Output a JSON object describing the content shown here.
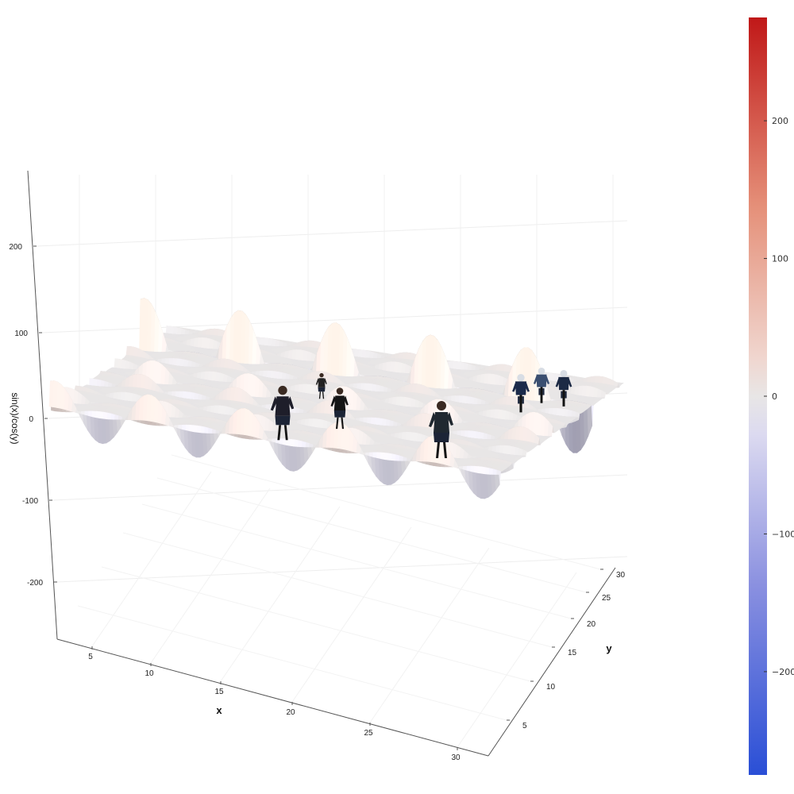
{
  "chart_data": {
    "type": "surface",
    "function": "sin(x)/cos(y)",
    "x_range": [
      1,
      31
    ],
    "y_range": [
      1,
      31
    ],
    "z_range": [
      -270,
      270
    ],
    "xlabel": "x",
    "ylabel": "y",
    "zlabel": "sin(x)/cos(y)",
    "x_ticks": [
      5,
      10,
      15,
      20,
      25,
      30
    ],
    "y_ticks": [
      5,
      10,
      15,
      20,
      25,
      30
    ],
    "z_ticks": [
      -200,
      -100,
      0,
      100,
      200
    ],
    "colorbar": {
      "colormap": "coolwarm",
      "min": -275,
      "max": 275,
      "ticks": [
        -200,
        -100,
        0,
        100,
        200
      ],
      "tick_labels": [
        "−200",
        "−100",
        "0",
        "100",
        "200"
      ],
      "low_color": "#2a4fd6",
      "mid_color": "#e8e6e6",
      "high_color": "#c01818"
    },
    "grid": true,
    "overlay": "photos of pedestrians and cyclists standing on the surface"
  }
}
